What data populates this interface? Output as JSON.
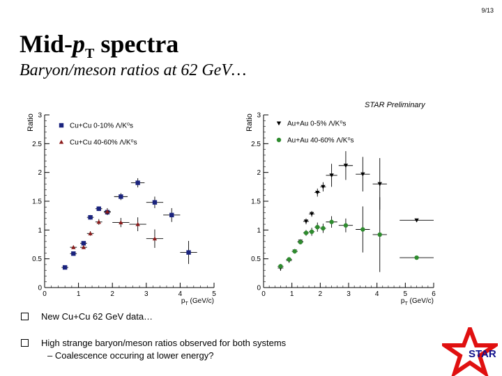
{
  "page_number": "9/13",
  "title": {
    "main": "Mid-p",
    "italic_p": "p",
    "subscript": "T",
    "rest": " spectra"
  },
  "subtitle": "Baryon/meson ratios at 62 GeV…",
  "preliminary_label": "STAR Preliminary",
  "bullets": [
    {
      "text": "New Cu+Cu 62 GeV data…"
    },
    {
      "text": "High strange baryon/meson ratios observed for both systems"
    }
  ],
  "sub_bullet": "– Coalescence occuring at lower energy?",
  "logo_text": "STAR",
  "colors": {
    "blue": "#1a237e",
    "red": "#8b1a1a",
    "black": "#000000",
    "green": "#2e8b2e",
    "star_red": "#e01010"
  },
  "chart_data": [
    {
      "type": "scatter",
      "xlabel": "p_T (GeV/c)",
      "ylabel": "Ratio",
      "xlim": [
        0,
        5
      ],
      "ylim": [
        0,
        3
      ],
      "xticks": [
        "0",
        "1",
        "2",
        "3",
        "4",
        "5"
      ],
      "yticks": [
        "0",
        "0.5",
        "1",
        "1.5",
        "2",
        "2.5",
        "3"
      ],
      "legend": [
        "Cu+Cu 0-10% Λ/K⁰s",
        "Cu+Cu 40-60% Λ/K⁰s"
      ],
      "series": [
        {
          "name": "Cu+Cu 0-10%",
          "marker": "square",
          "color": "#1a237e",
          "points": [
            {
              "x": 0.6,
              "y": 0.35,
              "ex": 0.1,
              "ey": 0.03
            },
            {
              "x": 0.85,
              "y": 0.59,
              "ex": 0.1,
              "ey": 0.03
            },
            {
              "x": 1.15,
              "y": 0.77,
              "ex": 0.1,
              "ey": 0.03
            },
            {
              "x": 1.35,
              "y": 1.22,
              "ex": 0.1,
              "ey": 0.04
            },
            {
              "x": 1.6,
              "y": 1.37,
              "ex": 0.1,
              "ey": 0.04
            },
            {
              "x": 1.85,
              "y": 1.31,
              "ex": 0.1,
              "ey": 0.04
            },
            {
              "x": 2.25,
              "y": 1.58,
              "ex": 0.2,
              "ey": 0.06
            },
            {
              "x": 2.75,
              "y": 1.82,
              "ex": 0.2,
              "ey": 0.08
            },
            {
              "x": 3.25,
              "y": 1.48,
              "ex": 0.25,
              "ey": 0.1
            },
            {
              "x": 3.75,
              "y": 1.26,
              "ex": 0.25,
              "ey": 0.12
            },
            {
              "x": 4.25,
              "y": 0.61,
              "ex": 0.25,
              "ey": 0.2
            }
          ]
        },
        {
          "name": "Cu+Cu 40-60%",
          "marker": "triangle-up",
          "color": "#8b1a1a",
          "points": [
            {
              "x": 0.85,
              "y": 0.7,
              "ex": 0.1,
              "ey": 0.03
            },
            {
              "x": 1.15,
              "y": 0.7,
              "ex": 0.1,
              "ey": 0.03
            },
            {
              "x": 1.35,
              "y": 0.94,
              "ex": 0.1,
              "ey": 0.04
            },
            {
              "x": 1.6,
              "y": 1.14,
              "ex": 0.1,
              "ey": 0.05
            },
            {
              "x": 1.85,
              "y": 1.32,
              "ex": 0.1,
              "ey": 0.06
            },
            {
              "x": 2.25,
              "y": 1.13,
              "ex": 0.25,
              "ey": 0.08
            },
            {
              "x": 2.75,
              "y": 1.1,
              "ex": 0.25,
              "ey": 0.12
            },
            {
              "x": 3.25,
              "y": 0.85,
              "ex": 0.25,
              "ey": 0.16
            }
          ]
        }
      ]
    },
    {
      "type": "scatter",
      "xlabel": "p_T (GeV/c)",
      "ylabel": "Ratio",
      "xlim": [
        0,
        6
      ],
      "ylim": [
        0,
        3
      ],
      "xticks": [
        "0",
        "1",
        "2",
        "3",
        "4",
        "5",
        "6"
      ],
      "yticks": [
        "0",
        "0.5",
        "1",
        "1.5",
        "2",
        "2.5",
        "3"
      ],
      "legend": [
        "Au+Au 0-5% Λ/K⁰s",
        "Au+Au 40-60% Λ/K⁰s"
      ],
      "series": [
        {
          "name": "Au+Au 0-5%",
          "marker": "triangle-down",
          "color": "#000000",
          "points": [
            {
              "x": 0.6,
              "y": 0.34,
              "ex": 0.1,
              "ey": 0.05
            },
            {
              "x": 0.9,
              "y": 0.47,
              "ex": 0.1,
              "ey": 0.04
            },
            {
              "x": 1.1,
              "y": 0.63,
              "ex": 0.1,
              "ey": 0.04
            },
            {
              "x": 1.3,
              "y": 0.8,
              "ex": 0.1,
              "ey": 0.04
            },
            {
              "x": 1.5,
              "y": 1.15,
              "ex": 0.1,
              "ey": 0.05
            },
            {
              "x": 1.7,
              "y": 1.28,
              "ex": 0.1,
              "ey": 0.05
            },
            {
              "x": 1.9,
              "y": 1.65,
              "ex": 0.1,
              "ey": 0.07
            },
            {
              "x": 2.1,
              "y": 1.75,
              "ex": 0.1,
              "ey": 0.08
            },
            {
              "x": 2.4,
              "y": 1.95,
              "ex": 0.2,
              "ey": 0.2
            },
            {
              "x": 2.9,
              "y": 2.12,
              "ex": 0.25,
              "ey": 0.25
            },
            {
              "x": 3.5,
              "y": 1.97,
              "ex": 0.25,
              "ey": 0.3
            },
            {
              "x": 4.1,
              "y": 1.8,
              "ex": 0.25,
              "ey": 0.45
            },
            {
              "x": 5.4,
              "y": 1.17,
              "ex": 0.6,
              "ey": 0.0
            }
          ]
        },
        {
          "name": "Au+Au 40-60%",
          "marker": "circle",
          "color": "#2e8b2e",
          "points": [
            {
              "x": 0.6,
              "y": 0.37,
              "ex": 0.1,
              "ey": 0.04
            },
            {
              "x": 0.9,
              "y": 0.49,
              "ex": 0.1,
              "ey": 0.03
            },
            {
              "x": 1.1,
              "y": 0.63,
              "ex": 0.1,
              "ey": 0.03
            },
            {
              "x": 1.3,
              "y": 0.79,
              "ex": 0.1,
              "ey": 0.04
            },
            {
              "x": 1.5,
              "y": 0.95,
              "ex": 0.1,
              "ey": 0.05
            },
            {
              "x": 1.7,
              "y": 0.97,
              "ex": 0.1,
              "ey": 0.07
            },
            {
              "x": 1.9,
              "y": 1.05,
              "ex": 0.1,
              "ey": 0.08
            },
            {
              "x": 2.1,
              "y": 1.03,
              "ex": 0.1,
              "ey": 0.08
            },
            {
              "x": 2.4,
              "y": 1.14,
              "ex": 0.2,
              "ey": 0.1
            },
            {
              "x": 2.9,
              "y": 1.08,
              "ex": 0.25,
              "ey": 0.12
            },
            {
              "x": 3.5,
              "y": 1.01,
              "ex": 0.25,
              "ey": 0.4
            },
            {
              "x": 4.1,
              "y": 0.92,
              "ex": 0.25,
              "ey": 0.65
            },
            {
              "x": 5.4,
              "y": 0.52,
              "ex": 0.6,
              "ey": 0.0
            }
          ]
        }
      ]
    }
  ]
}
